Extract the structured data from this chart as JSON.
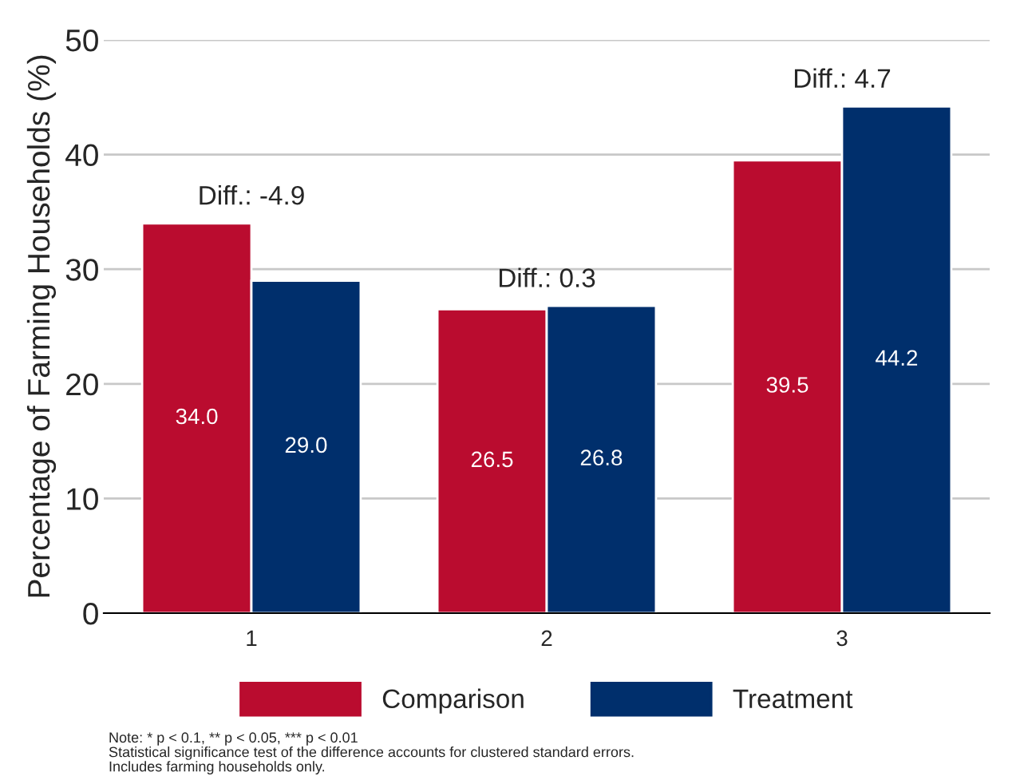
{
  "chart_data": {
    "type": "bar",
    "ylabel": "Percentage of Farming Households (%)",
    "categories": [
      "1",
      "2",
      "3"
    ],
    "series": [
      {
        "name": "Comparison",
        "color": "#ba0c2f",
        "values": [
          34.0,
          26.5,
          39.5
        ],
        "value_labels": [
          "34.0",
          "26.5",
          "39.5"
        ]
      },
      {
        "name": "Treatment",
        "color": "#002f6c",
        "values": [
          29.0,
          26.8,
          44.2
        ],
        "value_labels": [
          "29.0",
          "26.8",
          "44.2"
        ]
      }
    ],
    "ylim": [
      0,
      50
    ],
    "yticks": [
      0,
      10,
      20,
      30,
      40,
      50
    ],
    "grid": "y",
    "legend": "bottom",
    "annotations": [
      {
        "text": "Diff.: -4.9",
        "x": "1",
        "y": 34.0
      },
      {
        "text": "Diff.: 0.3",
        "x": "2",
        "y": 26.8
      },
      {
        "text": "Diff.: 4.7",
        "x": "3",
        "y": 44.2
      },
      "Note: * p < 0.1, ** p < 0.05, *** p < 0.01\nStatistical significance test of the difference accounts for clustered standard errors.\nIncludes farming households only."
    ]
  }
}
